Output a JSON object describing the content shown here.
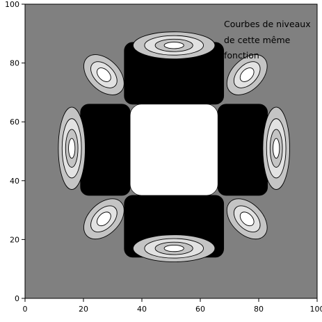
{
  "chart_data": {
    "type": "contour",
    "title": "",
    "xlabel": "",
    "ylabel": "",
    "xlim": [
      0,
      100
    ],
    "ylim": [
      0,
      100
    ],
    "x_ticks": [
      0,
      20,
      40,
      60,
      80,
      100
    ],
    "y_ticks": [
      0,
      20,
      40,
      60,
      80,
      100
    ],
    "annotation": [
      "Courbes de niveaux",
      "de cette même",
      "fonction"
    ],
    "colors": {
      "background": "#808080",
      "level_low": "#000000",
      "level_high": "#ffffff",
      "level_mid_light": "#c4c4c4",
      "level_mid_lighter": "#e2e2e2",
      "level_top": "#ffffff"
    },
    "regions": [
      {
        "name": "center-plateau",
        "level": "high",
        "x_range": [
          36,
          66
        ],
        "y_range": [
          35,
          66
        ]
      },
      {
        "name": "dark-band-top",
        "level": "low",
        "x_range": [
          34,
          68
        ],
        "y_range": [
          66,
          87
        ]
      },
      {
        "name": "dark-band-bottom",
        "level": "low",
        "x_range": [
          34,
          68
        ],
        "y_range": [
          14,
          35
        ]
      },
      {
        "name": "dark-band-left",
        "level": "low",
        "x_range": [
          19,
          36
        ],
        "y_range": [
          35,
          66
        ]
      },
      {
        "name": "dark-band-right",
        "level": "low",
        "x_range": [
          66,
          83
        ],
        "y_range": [
          35,
          66
        ]
      },
      {
        "name": "lobe-top",
        "center": [
          51,
          86
        ]
      },
      {
        "name": "lobe-bottom",
        "center": [
          51,
          17
        ]
      },
      {
        "name": "lobe-left",
        "center": [
          16,
          51
        ]
      },
      {
        "name": "lobe-right",
        "center": [
          86,
          51
        ]
      },
      {
        "name": "lobe-top-left",
        "center": [
          27,
          76
        ]
      },
      {
        "name": "lobe-top-right",
        "center": [
          76,
          76
        ]
      },
      {
        "name": "lobe-bottom-left",
        "center": [
          27,
          27
        ]
      },
      {
        "name": "lobe-bottom-right",
        "center": [
          76,
          27
        ]
      }
    ]
  }
}
